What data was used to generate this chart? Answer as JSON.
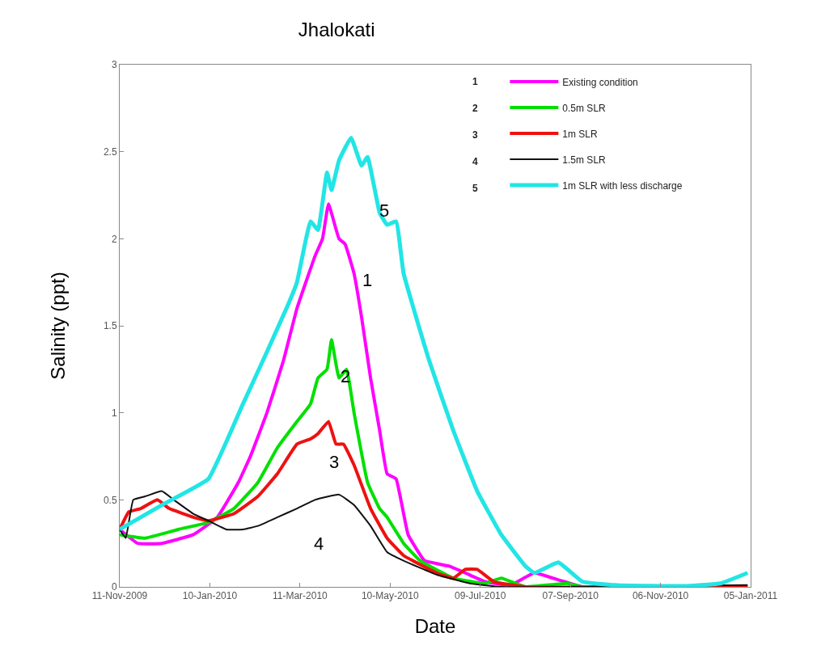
{
  "chart_data": {
    "type": "line",
    "title": "Jhalokati",
    "xlabel": "Date",
    "ylabel": "Salinity (ppt)",
    "xlim": [
      "2009-11-11",
      "2011-01-05"
    ],
    "ylim": [
      0,
      3
    ],
    "xticks": [
      {
        "value": "2009-11-11",
        "label": "11-Nov-2009"
      },
      {
        "value": "2010-01-10",
        "label": "10-Jan-2010"
      },
      {
        "value": "2010-03-11",
        "label": "11-Mar-2010"
      },
      {
        "value": "2010-05-10",
        "label": "10-May-2010"
      },
      {
        "value": "2010-07-09",
        "label": "09-Jul-2010"
      },
      {
        "value": "2010-09-07",
        "label": "07-Sep-2010"
      },
      {
        "value": "2010-11-06",
        "label": "06-Nov-2010"
      },
      {
        "value": "2011-01-05",
        "label": "05-Jan-2011"
      }
    ],
    "yticks": [
      0,
      0.5,
      1,
      1.5,
      2,
      2.5,
      3
    ],
    "grid": false,
    "legend": "top right",
    "marker": "none",
    "line_style": "solid",
    "series": [
      {
        "name": "Existing condition",
        "color": "#ff00ff",
        "x": [
          "2009-11-11",
          "2009-11-23",
          "2009-12-09",
          "2009-12-30",
          "2010-01-15",
          "2010-01-29",
          "2010-02-06",
          "2010-02-17",
          "2010-02-28",
          "2010-03-09",
          "2010-03-21",
          "2010-03-26",
          "2010-03-30",
          "2010-04-06",
          "2010-04-10",
          "2010-04-16",
          "2010-04-21",
          "2010-04-27",
          "2010-05-03",
          "2010-05-08",
          "2010-05-14",
          "2010-05-22",
          "2010-06-02",
          "2010-06-18",
          "2010-06-29",
          "2010-07-12",
          "2010-07-29",
          "2010-08-14",
          "2010-08-30",
          "2010-09-15",
          "2010-10-07"
        ],
        "values": [
          0.33,
          0.25,
          0.25,
          0.3,
          0.4,
          0.6,
          0.75,
          1.0,
          1.3,
          1.6,
          1.9,
          2.0,
          2.2,
          2.0,
          1.97,
          1.8,
          1.55,
          1.2,
          0.9,
          0.65,
          0.62,
          0.3,
          0.15,
          0.12,
          0.08,
          0.03,
          0.01,
          0.08,
          0.04,
          0.0,
          0.0
        ]
      },
      {
        "name": "0.5m SLR",
        "color": "#00e000",
        "x": [
          "2009-11-11",
          "2009-11-28",
          "2009-12-20",
          "2010-01-09",
          "2010-01-26",
          "2010-02-11",
          "2010-02-24",
          "2010-03-09",
          "2010-03-18",
          "2010-03-23",
          "2010-03-29",
          "2010-04-01",
          "2010-04-06",
          "2010-04-11",
          "2010-04-16",
          "2010-04-25",
          "2010-05-03",
          "2010-05-08",
          "2010-05-19",
          "2010-05-30",
          "2010-06-21",
          "2010-07-12",
          "2010-07-23",
          "2010-08-08",
          "2010-09-05",
          "2010-09-15",
          "2011-01-03"
        ],
        "values": [
          0.3,
          0.28,
          0.33,
          0.37,
          0.45,
          0.6,
          0.8,
          0.95,
          1.05,
          1.2,
          1.25,
          1.42,
          1.2,
          1.25,
          1.0,
          0.6,
          0.45,
          0.4,
          0.25,
          0.15,
          0.05,
          0.02,
          0.05,
          0.0,
          0.02,
          0.0,
          0.0
        ]
      },
      {
        "name": "1m SLR",
        "color": "#ee1111",
        "x": [
          "2009-11-11",
          "2009-11-17",
          "2009-11-25",
          "2009-12-06",
          "2009-12-14",
          "2009-12-30",
          "2010-01-09",
          "2010-01-26",
          "2010-02-11",
          "2010-02-24",
          "2010-03-09",
          "2010-03-18",
          "2010-03-23",
          "2010-03-30",
          "2010-04-04",
          "2010-04-09",
          "2010-04-16",
          "2010-04-27",
          "2010-05-08",
          "2010-05-19",
          "2010-06-10",
          "2010-06-21",
          "2010-06-29",
          "2010-07-07",
          "2010-07-18",
          "2010-08-08",
          "2011-01-03"
        ],
        "values": [
          0.33,
          0.43,
          0.45,
          0.5,
          0.45,
          0.4,
          0.38,
          0.42,
          0.52,
          0.65,
          0.82,
          0.85,
          0.88,
          0.95,
          0.82,
          0.82,
          0.7,
          0.45,
          0.28,
          0.18,
          0.08,
          0.05,
          0.1,
          0.1,
          0.03,
          0.0,
          0.0
        ]
      },
      {
        "name": "1.5m SLR",
        "color": "#111111",
        "x": [
          "2009-11-11",
          "2009-11-15",
          "2009-11-20",
          "2009-11-28",
          "2009-12-09",
          "2009-12-17",
          "2009-12-30",
          "2010-01-09",
          "2010-01-21",
          "2010-02-01",
          "2010-02-11",
          "2010-02-24",
          "2010-03-09",
          "2010-03-21",
          "2010-04-06",
          "2010-04-16",
          "2010-04-27",
          "2010-05-08",
          "2010-05-19",
          "2010-06-10",
          "2010-07-02",
          "2010-07-23",
          "2011-01-03"
        ],
        "values": [
          0.33,
          0.28,
          0.5,
          0.52,
          0.55,
          0.5,
          0.42,
          0.38,
          0.33,
          0.33,
          0.35,
          0.4,
          0.45,
          0.5,
          0.53,
          0.47,
          0.35,
          0.2,
          0.15,
          0.07,
          0.02,
          0.0,
          0.01
        ]
      },
      {
        "name": "1m SLR with less discharge",
        "color": "#22e5e5",
        "x": [
          "2009-11-11",
          "2009-12-09",
          "2010-01-09",
          "2010-02-01",
          "2010-02-17",
          "2010-03-03",
          "2010-03-09",
          "2010-03-18",
          "2010-03-23",
          "2010-03-29",
          "2010-04-01",
          "2010-04-06",
          "2010-04-14",
          "2010-04-21",
          "2010-04-25",
          "2010-05-03",
          "2010-05-08",
          "2010-05-14",
          "2010-05-19",
          "2010-06-05",
          "2010-06-21",
          "2010-07-07",
          "2010-07-23",
          "2010-08-08",
          "2010-08-14",
          "2010-08-30",
          "2010-09-15",
          "2010-10-07",
          "2010-11-24",
          "2010-12-16",
          "2011-01-03"
        ],
        "values": [
          0.33,
          0.47,
          0.62,
          1.05,
          1.35,
          1.62,
          1.75,
          2.1,
          2.05,
          2.38,
          2.28,
          2.45,
          2.58,
          2.42,
          2.47,
          2.15,
          2.08,
          2.1,
          1.8,
          1.3,
          0.9,
          0.55,
          0.3,
          0.12,
          0.08,
          0.14,
          0.03,
          0.01,
          0.005,
          0.02,
          0.08
        ]
      }
    ],
    "annotations": [
      "1",
      "2",
      "3",
      "4",
      "5",
      {
        "text": "1",
        "x": "2010-04-16",
        "y": 1.8
      },
      {
        "text": "2",
        "x": "2010-04-06",
        "y": 1.2
      },
      {
        "text": "3",
        "x": "2010-04-09",
        "y": 0.82
      },
      "4",
      {
        "text": "5",
        "x": "2010-05-08",
        "y": 2.08
      }
    ]
  }
}
